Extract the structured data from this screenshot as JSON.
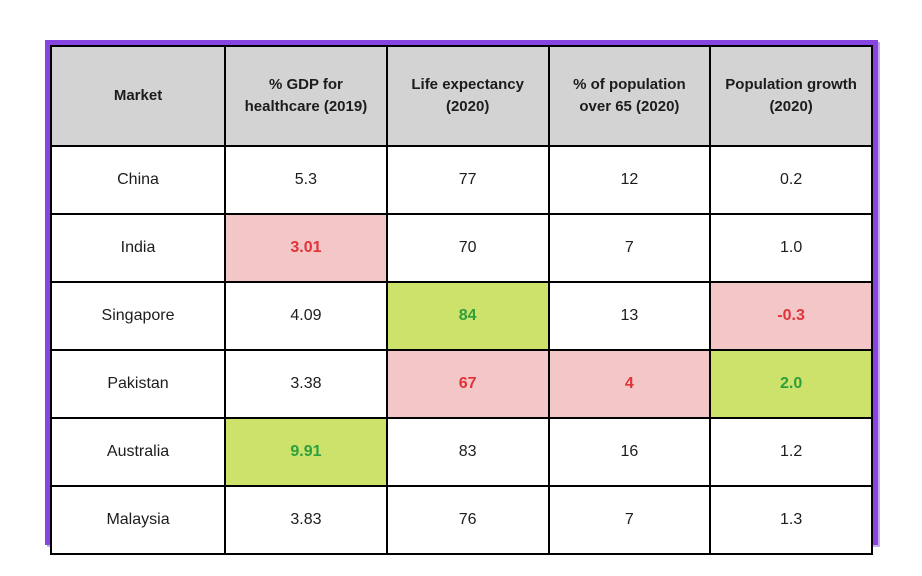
{
  "chart_data": {
    "type": "table",
    "columns": [
      "Market",
      "% GDP for healthcare (2019)",
      "Life expectancy (2020)",
      "% of population over 65 (2020)",
      "Population growth (2020)"
    ],
    "rows": [
      {
        "market": "China",
        "values": [
          "5.3",
          "77",
          "12",
          "0.2"
        ],
        "highlights": [
          null,
          null,
          null,
          null
        ]
      },
      {
        "market": "India",
        "values": [
          "3.01",
          "70",
          "7",
          "1.0"
        ],
        "highlights": [
          "red",
          null,
          null,
          null
        ]
      },
      {
        "market": "Singapore",
        "values": [
          "4.09",
          "84",
          "13",
          "-0.3"
        ],
        "highlights": [
          null,
          "green",
          null,
          "red"
        ]
      },
      {
        "market": "Pakistan",
        "values": [
          "3.38",
          "67",
          "4",
          "2.0"
        ],
        "highlights": [
          null,
          "red",
          "red",
          "green"
        ]
      },
      {
        "market": "Australia",
        "values": [
          "9.91",
          "83",
          "16",
          "1.2"
        ],
        "highlights": [
          "green",
          null,
          null,
          null
        ]
      },
      {
        "market": "Malaysia",
        "values": [
          "3.83",
          "76",
          "7",
          "1.3"
        ],
        "highlights": [
          null,
          null,
          null,
          null
        ]
      }
    ]
  },
  "colors": {
    "accent_purple": "#8644e0",
    "header_bg": "#d3d3d3",
    "grid_black": "#000000",
    "text_dark": "#1c1c1c",
    "red_bg": "#f3c6c8",
    "red_text": "#e03438",
    "green_bg": "#cce26a",
    "green_text": "#2e9e3e"
  }
}
